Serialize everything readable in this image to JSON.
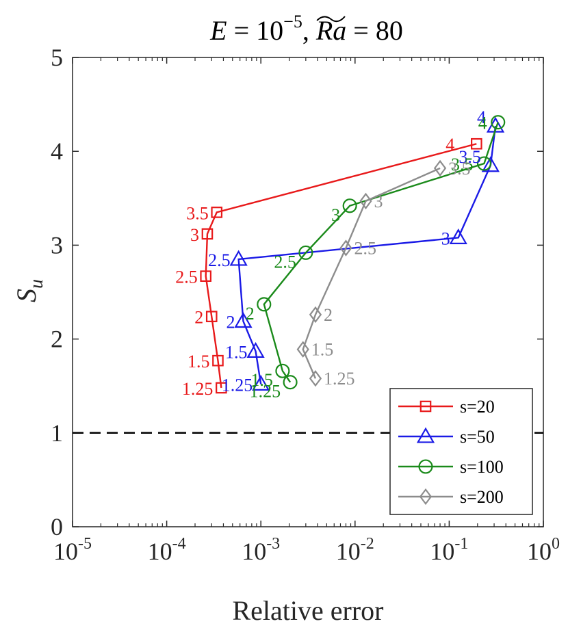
{
  "chart_data": {
    "type": "line",
    "title": "E = 10^−5, Ra~ = 80",
    "title_parts": {
      "e_var": "E",
      "e_eq": " = 10",
      "e_exp": "−5",
      "sep": ", ",
      "ra_var": "Ra",
      "ra_eq": " = 80"
    },
    "xlabel": "Relative error",
    "ylabel_var": "S",
    "ylabel_sub": "u",
    "xscale": "log",
    "xlim": [
      1e-05,
      1
    ],
    "ylim": [
      0,
      5
    ],
    "x_ticks": [
      {
        "value": 1e-05,
        "base": "10",
        "exp": "-5"
      },
      {
        "value": 0.0001,
        "base": "10",
        "exp": "-4"
      },
      {
        "value": 0.001,
        "base": "10",
        "exp": "-3"
      },
      {
        "value": 0.01,
        "base": "10",
        "exp": "-2"
      },
      {
        "value": 0.1,
        "base": "10",
        "exp": "-1"
      },
      {
        "value": 1,
        "base": "10",
        "exp": "0"
      }
    ],
    "y_ticks": [
      {
        "value": 0,
        "label": "0"
      },
      {
        "value": 1,
        "label": "1"
      },
      {
        "value": 2,
        "label": "2"
      },
      {
        "value": 3,
        "label": "3"
      },
      {
        "value": 4,
        "label": "4"
      },
      {
        "value": 5,
        "label": "5"
      }
    ],
    "reference_line": {
      "y": 1,
      "style": "dashed",
      "color": "#000000"
    },
    "legend_position": "bottom-right",
    "series": [
      {
        "name": "s=20",
        "color": "#e8191a",
        "marker": "square",
        "points": [
          {
            "x": 0.00038,
            "y": 1.48,
            "label": "1.25"
          },
          {
            "x": 0.00035,
            "y": 1.77,
            "label": "1.5"
          },
          {
            "x": 0.0003,
            "y": 2.24,
            "label": "2"
          },
          {
            "x": 0.00026,
            "y": 2.67,
            "label": "2.5"
          },
          {
            "x": 0.00027,
            "y": 3.12,
            "label": "3"
          },
          {
            "x": 0.00034,
            "y": 3.35,
            "label": "3.5"
          },
          {
            "x": 0.195,
            "y": 4.08,
            "label": "4"
          }
        ]
      },
      {
        "name": "s=50",
        "color": "#1a1ae6",
        "marker": "triangle",
        "points": [
          {
            "x": 0.001,
            "y": 1.52,
            "label": "1.25"
          },
          {
            "x": 0.00088,
            "y": 1.87,
            "label": "1.5"
          },
          {
            "x": 0.00065,
            "y": 2.19,
            "label": "2"
          },
          {
            "x": 0.00058,
            "y": 2.85,
            "label": "2.5"
          },
          {
            "x": 0.125,
            "y": 3.08,
            "label": "3"
          },
          {
            "x": 0.275,
            "y": 3.85,
            "label": "3.5"
          },
          {
            "x": 0.31,
            "y": 4.27,
            "label": "4"
          }
        ]
      },
      {
        "name": "s=100",
        "color": "#1a8a1a",
        "marker": "circle",
        "points": [
          {
            "x": 0.00205,
            "y": 1.54,
            "label": "1.25"
          },
          {
            "x": 0.0017,
            "y": 1.66,
            "label": "1.5"
          },
          {
            "x": 0.00108,
            "y": 2.37,
            "label": "2"
          },
          {
            "x": 0.003,
            "y": 2.92,
            "label": "2.5"
          },
          {
            "x": 0.0088,
            "y": 3.42,
            "label": "3"
          },
          {
            "x": 0.235,
            "y": 3.87,
            "label": "3.5"
          },
          {
            "x": 0.33,
            "y": 4.31,
            "label": "4"
          }
        ]
      },
      {
        "name": "s=200",
        "color": "#8c8c8c",
        "marker": "diamond",
        "points": [
          {
            "x": 0.0038,
            "y": 1.58,
            "label": "1.25"
          },
          {
            "x": 0.0028,
            "y": 1.89,
            "label": "1.5"
          },
          {
            "x": 0.0038,
            "y": 2.26,
            "label": "2"
          },
          {
            "x": 0.008,
            "y": 2.97,
            "label": "2.5"
          },
          {
            "x": 0.013,
            "y": 3.47,
            "label": "3"
          },
          {
            "x": 0.08,
            "y": 3.82,
            "label": "3.5"
          }
        ]
      }
    ]
  }
}
